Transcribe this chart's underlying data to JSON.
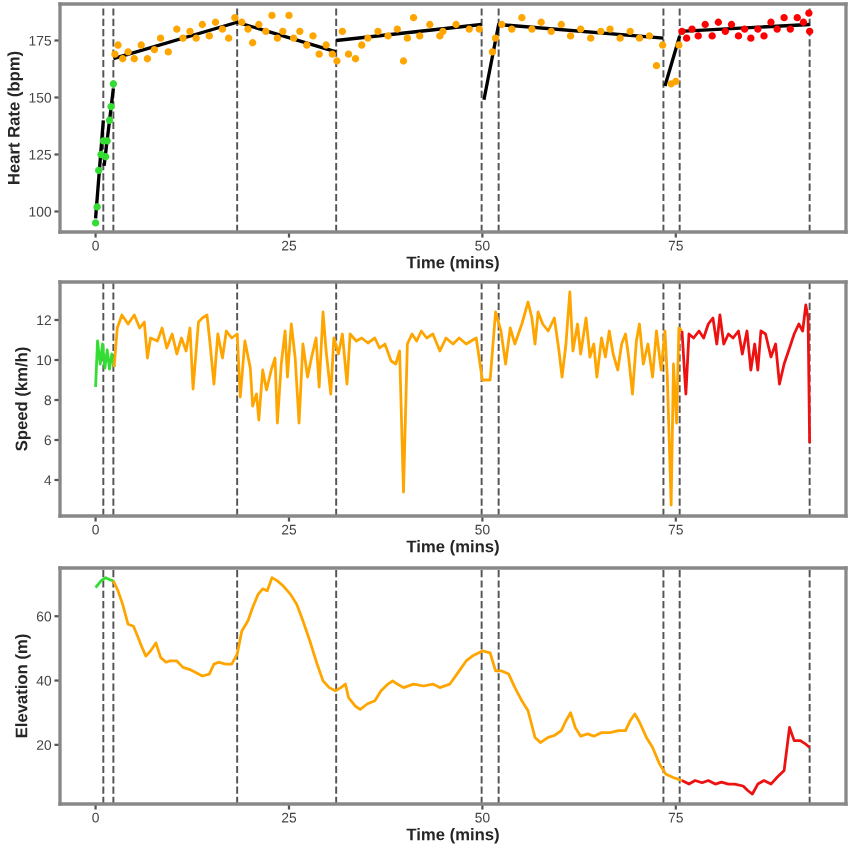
{
  "chart_data": [
    {
      "type": "scatter",
      "xlabel": "Time (mins)",
      "ylabel": "Heart Rate (bpm)",
      "xlim": [
        -4.6,
        97
      ],
      "ylim": [
        91,
        191
      ],
      "xticks": [
        0,
        25,
        50,
        75
      ],
      "yticks": [
        100,
        125,
        150,
        175
      ],
      "grid": false,
      "ref_lines": [
        {
          "axis": "x",
          "value": 1,
          "color": "#555555",
          "line_style": "dashed"
        },
        {
          "axis": "x",
          "value": 2.3,
          "color": "#555555",
          "line_style": "dashed"
        },
        {
          "axis": "x",
          "value": 18.3,
          "color": "#555555",
          "line_style": "dashed"
        },
        {
          "axis": "x",
          "value": 31.1,
          "color": "#555555",
          "line_style": "dashed"
        },
        {
          "axis": "x",
          "value": 49.9,
          "color": "#555555",
          "line_style": "dashed"
        },
        {
          "axis": "x",
          "value": 52.1,
          "color": "#555555",
          "line_style": "dashed"
        },
        {
          "axis": "x",
          "value": 73.4,
          "color": "#555555",
          "line_style": "dashed"
        },
        {
          "axis": "x",
          "value": 75.5,
          "color": "#555555",
          "line_style": "dashed"
        },
        {
          "axis": "x",
          "value": 92.3,
          "color": "#555555",
          "line_style": "dashed"
        }
      ],
      "series": [
        {
          "type": "scatter",
          "marker": "circle",
          "color": "#33dd33",
          "x": [
            0,
            0.2,
            0.4,
            0.7,
            1,
            1.3,
            1.5,
            1.8,
            2,
            2.3
          ],
          "values": [
            95,
            102,
            118,
            125,
            131,
            124,
            131,
            140,
            146,
            156
          ]
        },
        {
          "type": "scatter",
          "marker": "circle",
          "color": "#ffa500",
          "x": [
            2.5,
            2.9,
            3.5,
            4.2,
            5,
            5.9,
            6.7,
            7.6,
            8.4,
            9.4,
            10.5,
            11.3,
            12.2,
            13,
            13.8,
            14.7,
            15.5,
            16.4,
            17.2,
            18,
            18.9,
            19.7,
            20.3,
            21.1,
            22,
            22.8,
            23.5,
            24.2,
            25,
            25.6,
            26.4,
            27.3,
            28.1,
            28.9,
            29.8,
            30.6,
            31.2,
            31.9,
            32.7,
            33.6,
            34.4,
            35.2,
            36.5,
            37.8,
            39,
            39.8,
            40.3,
            41.1,
            41.9,
            43.2,
            44.5,
            44.9,
            46.6,
            48.3,
            49.6,
            51.3,
            51.7,
            52.5,
            53.8,
            55.1,
            56.4,
            57.6,
            58.9,
            60.2,
            61.4,
            62.7,
            64,
            65.3,
            66.5,
            67.8,
            69.1,
            70.3,
            71.6,
            72.5,
            73.3,
            74.4,
            75,
            75.4
          ],
          "values": [
            169,
            173,
            167,
            170,
            167,
            173,
            167,
            171,
            176,
            170,
            180,
            176,
            179,
            176,
            182,
            177,
            183,
            180,
            176,
            185,
            183,
            180,
            174,
            182,
            179,
            186,
            176,
            179,
            186,
            176,
            179,
            173,
            177,
            169,
            173,
            169,
            166,
            179,
            169,
            167,
            173,
            176,
            179,
            177,
            180,
            166,
            176,
            185,
            177,
            182,
            177,
            179,
            182,
            180,
            180,
            170,
            176,
            182,
            180,
            185,
            180,
            183,
            179,
            182,
            177,
            180,
            176,
            179,
            180,
            176,
            179,
            176,
            177,
            164,
            173,
            156,
            157,
            173
          ]
        },
        {
          "type": "scatter",
          "marker": "circle",
          "color": "#ff0000",
          "x": [
            75.8,
            76.4,
            77.1,
            77.9,
            78.8,
            79.7,
            80.5,
            81.4,
            82.2,
            83.1,
            83.9,
            84.7,
            85.6,
            86.4,
            87.3,
            88.1,
            89,
            89.8,
            90.7,
            91.5,
            92.2,
            92.3
          ],
          "values": [
            179,
            176,
            180,
            177,
            182,
            177,
            183,
            179,
            182,
            177,
            180,
            176,
            180,
            177,
            183,
            180,
            185,
            180,
            185,
            183,
            187,
            179
          ]
        },
        {
          "type": "line",
          "color": "#000000",
          "x": [
            0,
            1
          ],
          "values": [
            97,
            140
          ]
        },
        {
          "type": "line",
          "color": "#000000",
          "x": [
            1.1,
            2.3
          ],
          "values": [
            120,
            154
          ]
        },
        {
          "type": "line",
          "color": "#000000",
          "x": [
            2.3,
            18.3,
            31.1
          ],
          "values": [
            167,
            183,
            170
          ]
        },
        {
          "type": "line",
          "color": "#000000",
          "x": [
            31.1,
            49.9
          ],
          "values": [
            175,
            182
          ]
        },
        {
          "type": "line",
          "color": "#000000",
          "x": [
            50.2,
            52.1,
            73.4
          ],
          "values": [
            149,
            182,
            176
          ]
        },
        {
          "type": "line",
          "color": "#000000",
          "x": [
            73.6,
            75.5
          ],
          "values": [
            155,
            177
          ]
        },
        {
          "type": "line",
          "color": "#000000",
          "x": [
            75.5,
            92.3
          ],
          "values": [
            179,
            182
          ]
        }
      ]
    },
    {
      "type": "line",
      "xlabel": "Time (mins)",
      "ylabel": "Speed (km/h)",
      "xlim": [
        -4.6,
        97
      ],
      "ylim": [
        2.2,
        13.9
      ],
      "xticks": [
        0,
        25,
        50,
        75
      ],
      "yticks": [
        4,
        6,
        8,
        10,
        12
      ],
      "grid": false,
      "ref_lines": [
        {
          "axis": "x",
          "value": 1,
          "color": "#555555",
          "line_style": "dashed"
        },
        {
          "axis": "x",
          "value": 2.3,
          "color": "#555555",
          "line_style": "dashed"
        },
        {
          "axis": "x",
          "value": 18.3,
          "color": "#555555",
          "line_style": "dashed"
        },
        {
          "axis": "x",
          "value": 31.1,
          "color": "#555555",
          "line_style": "dashed"
        },
        {
          "axis": "x",
          "value": 49.9,
          "color": "#555555",
          "line_style": "dashed"
        },
        {
          "axis": "x",
          "value": 52.1,
          "color": "#555555",
          "line_style": "dashed"
        },
        {
          "axis": "x",
          "value": 73.4,
          "color": "#555555",
          "line_style": "dashed"
        },
        {
          "axis": "x",
          "value": 75.5,
          "color": "#555555",
          "line_style": "dashed"
        },
        {
          "axis": "x",
          "value": 92.3,
          "color": "#555555",
          "line_style": "dashed"
        }
      ],
      "series": [
        {
          "color": "#33dd33",
          "x": [
            0,
            0.25,
            0.6,
            0.9,
            1.2,
            1.5,
            1.8,
            2.1,
            2.4
          ],
          "values": [
            8.65,
            10.95,
            9.8,
            10.8,
            9.6,
            10.5,
            9.55,
            10.3,
            9.65
          ]
        },
        {
          "color": "#ffa500",
          "x": [
            2.4,
            2.8,
            3.4,
            4.2,
            5,
            5.7,
            6.3,
            6.7,
            7.1,
            8,
            8.6,
            9.2,
            9.9,
            10.5,
            11.1,
            11.7,
            12.2,
            12.6,
            13.3,
            13.8,
            14.4,
            14.8,
            15.3,
            15.8,
            16.4,
            16.9,
            17.6,
            18.3,
            18.7,
            19.3,
            20,
            20.3,
            20.8,
            21.1,
            21.6,
            22.1,
            22.7,
            23.2,
            23.5,
            24,
            24.5,
            24.8,
            25.3,
            25.8,
            26.3,
            26.8,
            27.4,
            27.9,
            28.5,
            28.9,
            29.4,
            29.8,
            30.4,
            30.8,
            31.4,
            31.9,
            32.5,
            32.9,
            33.7,
            34.4,
            35.2,
            36.1,
            36.7,
            37.4,
            38.2,
            38.8,
            39.3,
            39.8,
            40.3,
            40.9,
            41.5,
            42.1,
            42.8,
            43.6,
            44.5,
            45.3,
            46.2,
            47,
            47.9,
            49.2,
            50,
            51,
            51.7,
            52.4,
            53,
            53.6,
            54.2,
            55.1,
            55.9,
            56.4,
            56.8,
            57.2,
            57.8,
            58.5,
            59.3,
            59.9,
            60.3,
            60.8,
            61.3,
            61.7,
            62.3,
            62.7,
            63.4,
            63.9,
            64.4,
            64.8,
            65.4,
            65.9,
            66.4,
            66.9,
            67.5,
            68,
            68.5,
            68.9,
            69.4,
            69.9,
            70.3,
            70.8,
            71.4,
            72,
            72.5,
            73.1,
            73.6,
            73.9,
            74.4,
            74.7,
            75.1,
            75.4,
            75.8
          ],
          "values": [
            9.65,
            11.6,
            12.25,
            11.8,
            12.25,
            11.6,
            11.9,
            10.1,
            11.1,
            10.95,
            11.6,
            10.6,
            11.3,
            10.3,
            11.1,
            10.45,
            11.6,
            8.55,
            11.9,
            12.1,
            12.25,
            10.8,
            8.8,
            11.3,
            10.1,
            11.45,
            11.1,
            11.3,
            8.15,
            10.95,
            9.6,
            7.7,
            8.3,
            7.0,
            9.5,
            8.5,
            9.5,
            10.1,
            6.85,
            9.8,
            11.45,
            9.15,
            11.8,
            10.1,
            6.85,
            10.8,
            9.15,
            10.1,
            11.1,
            8.65,
            12.4,
            10.45,
            8.3,
            11.1,
            10.3,
            11.3,
            8.8,
            11.3,
            10.95,
            11.1,
            10.85,
            11.1,
            10.6,
            10.8,
            9.95,
            9.8,
            10.45,
            3.4,
            10.8,
            11.3,
            10.95,
            11.45,
            11.1,
            11.3,
            10.45,
            11.1,
            10.8,
            11.1,
            10.8,
            11.1,
            9.0,
            9.0,
            12.4,
            11.45,
            9.8,
            11.6,
            10.8,
            11.8,
            12.9,
            12.1,
            10.8,
            12.4,
            11.8,
            11.45,
            12.1,
            10.45,
            9.15,
            10.8,
            13.4,
            10.45,
            11.8,
            10.3,
            12.1,
            10.15,
            10.8,
            9.15,
            11.1,
            10.15,
            11.45,
            10.3,
            9.5,
            10.8,
            11.3,
            10.15,
            8.3,
            10.95,
            11.8,
            9.8,
            10.8,
            9.15,
            11.45,
            9.5,
            11.45,
            9.15,
            2.75,
            9.8,
            6.85,
            11.6,
            11.45
          ]
        },
        {
          "color": "#ee1111",
          "x": [
            75.8,
            76.3,
            76.7,
            77.3,
            78,
            78.6,
            79.2,
            79.8,
            80.3,
            80.7,
            81.2,
            81.8,
            82.4,
            83.1,
            83.6,
            84.2,
            84.7,
            85.2,
            85.6,
            86,
            86.6,
            87.3,
            87.9,
            88.4,
            89,
            89.7,
            90.3,
            90.9,
            91.4,
            91.8,
            92.1,
            92.3
          ],
          "values": [
            11.45,
            8.3,
            11.3,
            11.1,
            11.45,
            11.1,
            11.8,
            12.1,
            10.8,
            12.25,
            10.8,
            11.3,
            11.1,
            11.45,
            10.3,
            11.45,
            9.5,
            10.8,
            9.5,
            11.45,
            11.3,
            10.15,
            10.8,
            8.8,
            9.8,
            10.6,
            11.3,
            11.8,
            11.45,
            12.75,
            12.1,
            5.85
          ]
        }
      ]
    },
    {
      "type": "line",
      "xlabel": "Time (mins)",
      "ylabel": "Elevation (m)",
      "xlim": [
        -4.6,
        97
      ],
      "ylim": [
        1.6,
        75
      ],
      "xticks": [
        0,
        25,
        50,
        75
      ],
      "yticks": [
        20,
        40,
        60
      ],
      "grid": false,
      "ref_lines": [
        {
          "axis": "x",
          "value": 1,
          "color": "#555555",
          "line_style": "dashed"
        },
        {
          "axis": "x",
          "value": 2.3,
          "color": "#555555",
          "line_style": "dashed"
        },
        {
          "axis": "x",
          "value": 18.3,
          "color": "#555555",
          "line_style": "dashed"
        },
        {
          "axis": "x",
          "value": 31.1,
          "color": "#555555",
          "line_style": "dashed"
        },
        {
          "axis": "x",
          "value": 49.9,
          "color": "#555555",
          "line_style": "dashed"
        },
        {
          "axis": "x",
          "value": 52.1,
          "color": "#555555",
          "line_style": "dashed"
        },
        {
          "axis": "x",
          "value": 73.4,
          "color": "#555555",
          "line_style": "dashed"
        },
        {
          "axis": "x",
          "value": 75.5,
          "color": "#555555",
          "line_style": "dashed"
        },
        {
          "axis": "x",
          "value": 92.3,
          "color": "#555555",
          "line_style": "dashed"
        }
      ],
      "series": [
        {
          "color": "#33dd33",
          "x": [
            0,
            0.7,
            1.3,
            1.8,
            2.3
          ],
          "values": [
            68.9,
            71,
            72,
            71.4,
            71
          ]
        },
        {
          "color": "#ffa500",
          "x": [
            2.3,
            2.9,
            3.5,
            4.2,
            4.9,
            5.5,
            6,
            6.5,
            7.1,
            7.8,
            8.4,
            9.1,
            9.6,
            10.5,
            11.3,
            12.2,
            13,
            13.8,
            14.7,
            15.3,
            15.9,
            16.8,
            17.6,
            18.3,
            18.9,
            19.7,
            20.3,
            21,
            21.6,
            22.2,
            22.8,
            23.5,
            24.3,
            25.2,
            26,
            26.8,
            27.7,
            28.5,
            29.4,
            30.2,
            31,
            31.7,
            32.3,
            32.7,
            33.6,
            34.2,
            35.1,
            36.1,
            36.9,
            37.8,
            38.4,
            39,
            39.8,
            41.1,
            42.4,
            43.6,
            44.5,
            45.8,
            47,
            47.9,
            48.7,
            50,
            51,
            51.7,
            52.5,
            53.4,
            54.2,
            55.1,
            55.9,
            56.8,
            57.5,
            58.5,
            59.3,
            60.2,
            60.8,
            61.4,
            62,
            62.7,
            63.6,
            64.4,
            65.4,
            66.5,
            67.6,
            68.5,
            69.1,
            69.7,
            70.3,
            71.2,
            72,
            72.9,
            73.7,
            74.6,
            75.8
          ],
          "values": [
            71,
            67.9,
            63.7,
            57.5,
            56.9,
            53.4,
            50.3,
            47.6,
            49.2,
            51.7,
            47.2,
            45.7,
            46.1,
            46.1,
            44.1,
            43.4,
            42.4,
            41.4,
            42,
            45.1,
            45.7,
            45.1,
            45.1,
            48.2,
            55.4,
            58.6,
            62.7,
            66.8,
            68.5,
            67.9,
            72,
            71,
            69.3,
            66.8,
            63.7,
            58.6,
            52.3,
            46.1,
            39.9,
            37.8,
            36.8,
            37.8,
            38.9,
            34.7,
            32,
            31,
            32.7,
            33.7,
            36.8,
            38.9,
            39.9,
            38.9,
            37.8,
            38.9,
            38.3,
            38.9,
            37.8,
            38.9,
            43,
            46.1,
            47.6,
            49.2,
            48.6,
            43,
            43,
            42,
            37.8,
            33.7,
            30.6,
            22.3,
            20.7,
            22.3,
            22.9,
            24.4,
            27.5,
            30,
            25.4,
            22.7,
            23.4,
            22.7,
            23.8,
            23.8,
            24.4,
            24.4,
            27.5,
            29.6,
            27.1,
            22.3,
            19.2,
            14,
            10.9,
            9.9,
            8.9
          ]
        },
        {
          "color": "#ee1111",
          "x": [
            75.8,
            76.7,
            77.5,
            78.4,
            79.2,
            80.1,
            80.9,
            81.8,
            82.6,
            83.7,
            84.3,
            84.9,
            85.6,
            86.4,
            87.3,
            88.1,
            89,
            89.7,
            90.3,
            91.1,
            91.8,
            92.3
          ],
          "values": [
            8.9,
            7.8,
            8.9,
            8.2,
            8.9,
            7.8,
            8.4,
            7.8,
            7.8,
            7.2,
            5.8,
            4.7,
            7.8,
            8.9,
            7.8,
            9.9,
            12,
            25.4,
            21.3,
            21.3,
            20.2,
            19.2
          ]
        }
      ]
    }
  ]
}
